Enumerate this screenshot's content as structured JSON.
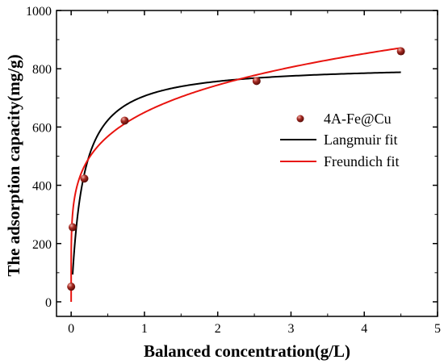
{
  "chart_data": {
    "type": "scatter",
    "title": "",
    "xlabel": "Balanced concentration(g/L)",
    "ylabel": "The adsorption capacity(mg/g)",
    "xlim": [
      -0.2,
      5
    ],
    "ylim": [
      -50,
      1000
    ],
    "x_ticks": [
      "0",
      "1",
      "2",
      "3",
      "4",
      "5"
    ],
    "y_ticks": [
      "0",
      "200",
      "400",
      "600",
      "800",
      "1000"
    ],
    "grid": false,
    "legend_position": "center-right",
    "series": [
      {
        "name": "4A-Fe@Cu",
        "kind": "scatter",
        "color": "#8b1a1a",
        "points": [
          {
            "x": 0.0,
            "y": 52
          },
          {
            "x": 0.02,
            "y": 256
          },
          {
            "x": 0.18,
            "y": 423
          },
          {
            "x": 0.73,
            "y": 622
          },
          {
            "x": 2.53,
            "y": 758
          },
          {
            "x": 4.5,
            "y": 860
          }
        ]
      },
      {
        "name": "Langmuir fit",
        "kind": "line",
        "color": "#000000",
        "model": "langmuir",
        "params": {
          "qm": 815,
          "KL": 6.5
        },
        "x_range": [
          0.02,
          4.5
        ]
      },
      {
        "name": "Freundich fit",
        "kind": "line",
        "color": "#e8140f",
        "model": "freundlich",
        "params": {
          "KF": 650,
          "n": 0.195
        },
        "x_range": [
          0,
          4.5
        ]
      }
    ]
  }
}
